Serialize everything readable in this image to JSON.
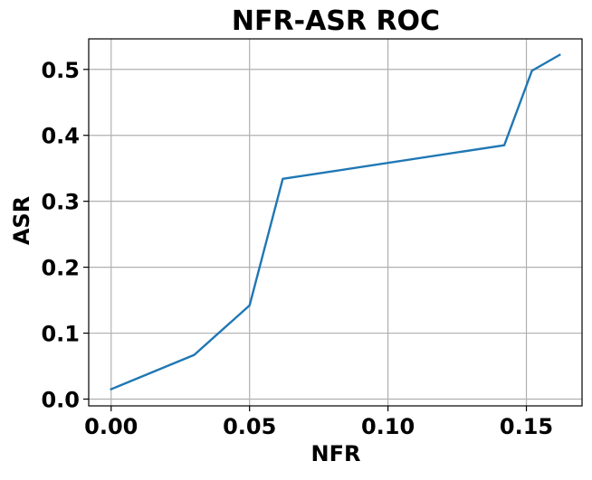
{
  "chart_data": {
    "type": "line",
    "title": "NFR-ASR ROC",
    "xlabel": "NFR",
    "ylabel": "ASR",
    "xlim": [
      -0.0081,
      0.1701
    ],
    "ylim": [
      -0.0103,
      0.5463
    ],
    "xticks": [
      0.0,
      0.05,
      0.1,
      0.15
    ],
    "xtick_labels": [
      "0.00",
      "0.05",
      "0.10",
      "0.15"
    ],
    "yticks": [
      0.0,
      0.1,
      0.2,
      0.3,
      0.4,
      0.5
    ],
    "ytick_labels": [
      "0.0",
      "0.1",
      "0.2",
      "0.3",
      "0.4",
      "0.5"
    ],
    "grid": true,
    "legend": false,
    "series": [
      {
        "color": "#1f77b4",
        "x": [
          0.0,
          0.03,
          0.05,
          0.062,
          0.142,
          0.152,
          0.162
        ],
        "y": [
          0.015,
          0.067,
          0.142,
          0.334,
          0.385,
          0.498,
          0.522
        ]
      }
    ]
  }
}
